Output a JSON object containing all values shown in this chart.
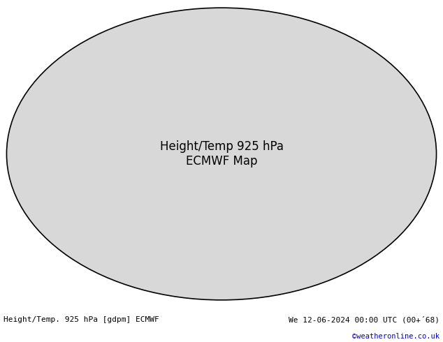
{
  "title_left": "Height/Temp. 925 hPa [gdpm] ECMWF",
  "title_right": "We 12-06-2024 00:00 UTC (00+´68)",
  "copyright": "©weatheronline.co.uk",
  "fig_width": 6.34,
  "fig_height": 4.9,
  "dpi": 100,
  "map_bg_color": "#ffffff",
  "ocean_color": "#d8d8d8",
  "land_color": "#ccff99",
  "border_color": "#808080",
  "label_fontsize": 8,
  "copyright_fontsize": 7.5,
  "contour_black": "#000000",
  "contour_red": "#ff0000",
  "contour_orange": "#ff8800",
  "contour_magenta": "#ff00ff",
  "contour_cyan": "#00bbbb",
  "contour_blue": "#0000ff",
  "contour_purple": "#880099",
  "copyright_color": "#0000cc",
  "bottom_text_color": "#000000"
}
